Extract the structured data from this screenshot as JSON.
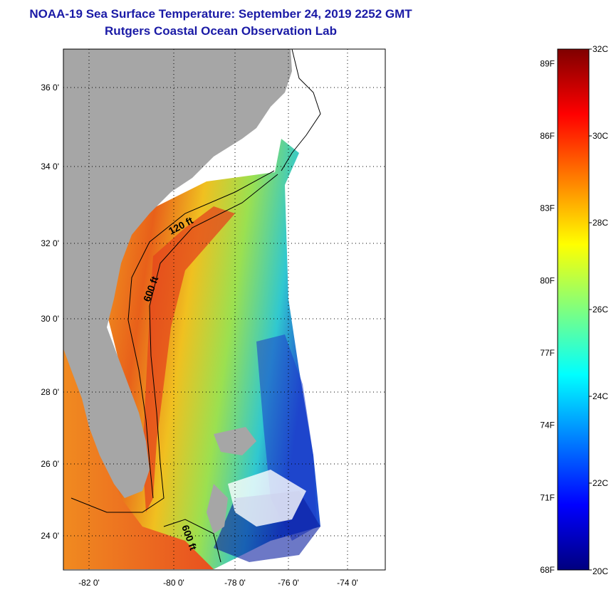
{
  "title": {
    "line1": "NOAA-19 Sea Surface Temperature:  September 24, 2019 2252 GMT",
    "line2": "Rutgers Coastal Ocean Observation Lab"
  },
  "map": {
    "lat_labels": [
      "36 0'",
      "34 0'",
      "32 0'",
      "30 0'",
      "28 0'",
      "26 0'",
      "24 0'"
    ],
    "lon_labels": [
      "-82 0'",
      "-80 0'",
      "-78 0'",
      "-76 0'",
      "-74 0'"
    ],
    "contour_labels": [
      "120 ft",
      "600 ft",
      "600 ft"
    ],
    "land_color": "#a6a6a6"
  },
  "colorbar": {
    "fahrenheit_labels": [
      "89F",
      "86F",
      "83F",
      "80F",
      "77F",
      "74F",
      "71F",
      "68F"
    ],
    "celsius_labels": [
      "32C",
      "30C",
      "28C",
      "26C",
      "24C",
      "22C",
      "20C"
    ],
    "range_c": [
      20,
      32
    ],
    "colormap": [
      "#00007f",
      "#0000ff",
      "#007fff",
      "#00ffff",
      "#7fff7f",
      "#ffff00",
      "#ff7f00",
      "#ff0000",
      "#7f0000"
    ]
  }
}
